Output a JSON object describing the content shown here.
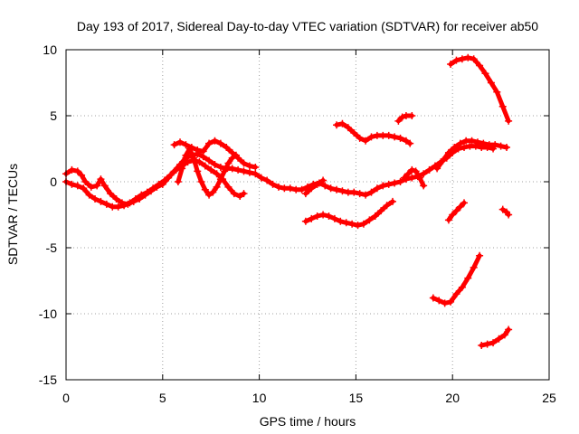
{
  "chart_data": {
    "type": "scatter",
    "title": "Day 193 of 2017, Sidereal Day-to-day VTEC variation (SDTVAR) for receiver ab50",
    "xlabel": "GPS time / hours",
    "ylabel": "SDTVAR / TECUs",
    "xlim": [
      0,
      25
    ],
    "ylim": [
      -15,
      10
    ],
    "xticks": [
      0,
      5,
      10,
      15,
      20,
      25
    ],
    "yticks": [
      -15,
      -10,
      -5,
      0,
      5,
      10
    ],
    "xtick_labels": [
      "0",
      "5",
      "10",
      "15",
      "20",
      "25"
    ],
    "ytick_labels": [
      "-15",
      "-10",
      "-5",
      "0",
      "5",
      "10"
    ],
    "grid": true,
    "marker": "plus",
    "color": "#ff0000",
    "series": [
      {
        "name": "track-1",
        "points": [
          [
            0,
            0.6
          ],
          [
            0.3,
            0.9
          ],
          [
            0.6,
            0.8
          ],
          [
            0.8,
            0.5
          ],
          [
            1.0,
            0.0
          ],
          [
            1.3,
            -0.4
          ],
          [
            1.6,
            -0.3
          ],
          [
            1.8,
            0.2
          ],
          [
            2.0,
            -0.3
          ],
          [
            2.3,
            -0.9
          ],
          [
            2.6,
            -1.3
          ],
          [
            2.9,
            -1.6
          ],
          [
            3.2,
            -1.7
          ],
          [
            3.5,
            -1.5
          ],
          [
            3.8,
            -1.3
          ],
          [
            4.1,
            -1.0
          ],
          [
            4.4,
            -0.7
          ],
          [
            4.7,
            -0.4
          ],
          [
            5.0,
            -0.2
          ],
          [
            5.3,
            0.3
          ],
          [
            5.6,
            0.8
          ],
          [
            5.9,
            1.3
          ],
          [
            6.2,
            1.8
          ],
          [
            6.5,
            2.0
          ],
          [
            6.8,
            2.1
          ],
          [
            7.1,
            1.9
          ],
          [
            7.4,
            1.6
          ],
          [
            7.7,
            1.3
          ],
          [
            8.0,
            1.1
          ],
          [
            8.3,
            1.0
          ],
          [
            8.6,
            1.0
          ],
          [
            8.9,
            0.9
          ],
          [
            9.2,
            0.8
          ],
          [
            9.5,
            0.7
          ],
          [
            9.8,
            0.6
          ],
          [
            10.1,
            0.3
          ],
          [
            10.4,
            0.1
          ],
          [
            10.7,
            -0.2
          ],
          [
            11.0,
            -0.4
          ],
          [
            11.3,
            -0.5
          ],
          [
            11.6,
            -0.5
          ],
          [
            11.9,
            -0.6
          ],
          [
            12.2,
            -0.6
          ],
          [
            12.5,
            -0.4
          ],
          [
            12.8,
            -0.2
          ],
          [
            13.1,
            -0.1
          ],
          [
            13.4,
            -0.3
          ],
          [
            13.7,
            -0.5
          ],
          [
            14.0,
            -0.6
          ],
          [
            14.3,
            -0.7
          ],
          [
            14.6,
            -0.8
          ],
          [
            14.9,
            -0.8
          ],
          [
            15.2,
            -0.9
          ],
          [
            15.5,
            -1.0
          ],
          [
            15.8,
            -0.8
          ],
          [
            16.1,
            -0.5
          ],
          [
            16.4,
            -0.3
          ],
          [
            16.7,
            -0.2
          ],
          [
            17.0,
            -0.1
          ],
          [
            17.3,
            0.0
          ],
          [
            17.6,
            0.2
          ],
          [
            17.9,
            0.3
          ],
          [
            18.2,
            0.4
          ],
          [
            18.5,
            0.6
          ],
          [
            18.8,
            0.9
          ],
          [
            19.1,
            1.2
          ],
          [
            19.4,
            1.5
          ],
          [
            19.7,
            1.8
          ],
          [
            20.0,
            2.2
          ],
          [
            20.3,
            2.5
          ],
          [
            20.6,
            2.6
          ],
          [
            20.9,
            2.7
          ],
          [
            21.2,
            2.7
          ],
          [
            21.5,
            2.6
          ],
          [
            21.8,
            2.6
          ],
          [
            22.1,
            2.5
          ]
        ]
      },
      {
        "name": "track-2",
        "points": [
          [
            0,
            0.0
          ],
          [
            0.3,
            -0.2
          ],
          [
            0.6,
            -0.3
          ],
          [
            0.9,
            -0.5
          ],
          [
            1.2,
            -1.0
          ],
          [
            1.5,
            -1.3
          ],
          [
            1.8,
            -1.5
          ],
          [
            2.1,
            -1.7
          ],
          [
            2.4,
            -1.9
          ],
          [
            2.7,
            -1.9
          ],
          [
            3.0,
            -1.8
          ],
          [
            3.3,
            -1.6
          ],
          [
            3.6,
            -1.3
          ],
          [
            3.9,
            -1.0
          ],
          [
            4.2,
            -0.8
          ],
          [
            4.5,
            -0.5
          ],
          [
            4.8,
            -0.2
          ],
          [
            5.1,
            0.1
          ],
          [
            5.4,
            0.5
          ],
          [
            5.7,
            0.9
          ],
          [
            6.0,
            1.2
          ],
          [
            6.3,
            1.5
          ],
          [
            6.6,
            1.6
          ],
          [
            6.9,
            1.5
          ],
          [
            7.2,
            1.2
          ],
          [
            7.5,
            0.9
          ],
          [
            7.8,
            0.6
          ],
          [
            8.1,
            0.2
          ],
          [
            8.4,
            -0.4
          ],
          [
            8.7,
            -0.9
          ],
          [
            9.0,
            -1.1
          ],
          [
            9.2,
            -0.9
          ]
        ]
      },
      {
        "name": "track-3",
        "points": [
          [
            5.8,
            0.0
          ],
          [
            6.0,
            1.0
          ],
          [
            6.2,
            2.0
          ],
          [
            6.4,
            2.5
          ],
          [
            6.6,
            1.8
          ],
          [
            6.8,
            0.8
          ],
          [
            7.0,
            0.0
          ],
          [
            7.2,
            -0.6
          ],
          [
            7.4,
            -1.0
          ],
          [
            7.6,
            -0.8
          ],
          [
            7.8,
            -0.4
          ],
          [
            8.0,
            0.2
          ],
          [
            8.2,
            0.8
          ],
          [
            8.4,
            1.4
          ],
          [
            8.6,
            1.8
          ],
          [
            8.8,
            2.0
          ]
        ]
      },
      {
        "name": "track-4",
        "points": [
          [
            5.6,
            2.8
          ],
          [
            5.9,
            3.0
          ],
          [
            6.2,
            2.8
          ],
          [
            6.5,
            2.6
          ],
          [
            6.8,
            2.4
          ],
          [
            7.1,
            2.3
          ],
          [
            7.4,
            2.9
          ],
          [
            7.7,
            3.1
          ],
          [
            8.0,
            2.9
          ],
          [
            8.3,
            2.6
          ],
          [
            8.6,
            2.2
          ],
          [
            8.9,
            1.8
          ],
          [
            9.2,
            1.4
          ],
          [
            9.5,
            1.2
          ],
          [
            9.8,
            1.1
          ]
        ]
      },
      {
        "name": "track-5",
        "points": [
          [
            14.0,
            4.3
          ],
          [
            14.3,
            4.4
          ],
          [
            14.6,
            4.1
          ],
          [
            14.9,
            3.7
          ],
          [
            15.2,
            3.3
          ],
          [
            15.5,
            3.1
          ],
          [
            15.8,
            3.4
          ],
          [
            16.1,
            3.5
          ],
          [
            16.4,
            3.5
          ],
          [
            16.7,
            3.5
          ],
          [
            17.0,
            3.4
          ],
          [
            17.3,
            3.3
          ],
          [
            17.6,
            3.1
          ],
          [
            17.8,
            2.9
          ]
        ]
      },
      {
        "name": "track-6",
        "points": [
          [
            17.2,
            4.6
          ],
          [
            17.4,
            4.9
          ],
          [
            17.6,
            5.0
          ],
          [
            17.9,
            5.0
          ]
        ]
      },
      {
        "name": "track-7",
        "points": [
          [
            12.4,
            -3.0
          ],
          [
            12.7,
            -2.8
          ],
          [
            13.0,
            -2.6
          ],
          [
            13.3,
            -2.5
          ],
          [
            13.6,
            -2.6
          ],
          [
            13.9,
            -2.8
          ],
          [
            14.2,
            -3.0
          ],
          [
            14.5,
            -3.1
          ],
          [
            14.8,
            -3.2
          ],
          [
            15.1,
            -3.3
          ],
          [
            15.4,
            -3.2
          ],
          [
            15.7,
            -2.9
          ],
          [
            16.0,
            -2.6
          ],
          [
            16.3,
            -2.2
          ],
          [
            16.6,
            -1.8
          ],
          [
            16.9,
            -1.5
          ]
        ]
      },
      {
        "name": "track-8",
        "points": [
          [
            19.2,
            1.0
          ],
          [
            19.5,
            1.6
          ],
          [
            19.8,
            2.2
          ],
          [
            20.1,
            2.6
          ],
          [
            20.4,
            2.9
          ],
          [
            20.7,
            3.1
          ],
          [
            21.0,
            3.1
          ],
          [
            21.3,
            3.0
          ],
          [
            21.6,
            2.9
          ],
          [
            21.9,
            2.8
          ],
          [
            22.2,
            2.8
          ],
          [
            22.5,
            2.7
          ],
          [
            22.8,
            2.6
          ]
        ]
      },
      {
        "name": "track-9",
        "points": [
          [
            19.9,
            8.9
          ],
          [
            20.2,
            9.2
          ],
          [
            20.5,
            9.3
          ],
          [
            20.8,
            9.4
          ],
          [
            21.1,
            9.3
          ],
          [
            21.4,
            8.8
          ],
          [
            21.7,
            8.2
          ],
          [
            22.0,
            7.5
          ],
          [
            22.3,
            6.8
          ],
          [
            22.6,
            5.7
          ],
          [
            22.9,
            4.6
          ]
        ]
      },
      {
        "name": "track-10",
        "points": [
          [
            19.8,
            -2.9
          ],
          [
            20.0,
            -2.5
          ],
          [
            20.2,
            -2.2
          ],
          [
            20.4,
            -1.9
          ],
          [
            20.6,
            -1.6
          ]
        ]
      },
      {
        "name": "track-11",
        "points": [
          [
            22.6,
            -2.1
          ],
          [
            22.8,
            -2.3
          ],
          [
            22.9,
            -2.5
          ]
        ]
      },
      {
        "name": "track-12",
        "points": [
          [
            19.0,
            -8.8
          ],
          [
            19.3,
            -9.0
          ],
          [
            19.6,
            -9.2
          ],
          [
            19.9,
            -9.1
          ],
          [
            20.2,
            -8.5
          ],
          [
            20.5,
            -8.0
          ],
          [
            20.8,
            -7.3
          ],
          [
            21.1,
            -6.5
          ],
          [
            21.4,
            -5.6
          ]
        ]
      },
      {
        "name": "track-13",
        "points": [
          [
            21.5,
            -12.4
          ],
          [
            21.8,
            -12.3
          ],
          [
            22.1,
            -12.2
          ],
          [
            22.4,
            -11.9
          ],
          [
            22.7,
            -11.6
          ],
          [
            22.9,
            -11.2
          ]
        ]
      },
      {
        "name": "track-14",
        "points": [
          [
            17.5,
            0.3
          ],
          [
            17.7,
            0.6
          ],
          [
            17.9,
            0.9
          ],
          [
            18.1,
            0.8
          ],
          [
            18.3,
            0.3
          ],
          [
            18.5,
            -0.3
          ]
        ]
      },
      {
        "name": "track-15",
        "points": [
          [
            12.4,
            -0.9
          ],
          [
            12.7,
            -0.5
          ],
          [
            13.0,
            -0.2
          ],
          [
            13.3,
            0.1
          ]
        ]
      }
    ]
  }
}
